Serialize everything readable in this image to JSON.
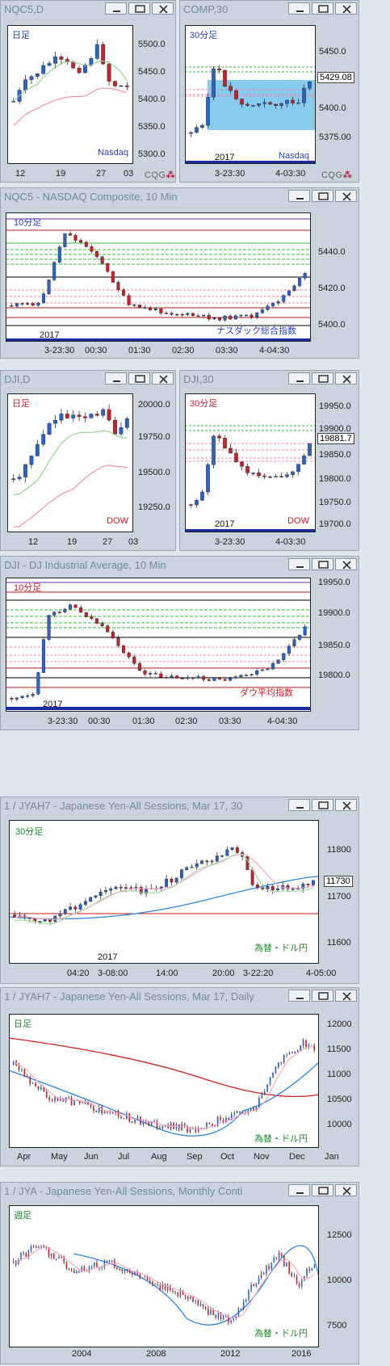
{
  "colors": {
    "up": "#2a64c8",
    "down": "#c8222a",
    "frame_bg": "#c9d4df"
  },
  "windows": [
    {
      "title": "NQC5,D",
      "timeframe": "日足",
      "symbol_label": "Nasdaq",
      "price_axis": [
        "5500.0",
        "5450.0",
        "5400.0",
        "5350.0",
        "5300.0"
      ],
      "time_axis": [
        "12",
        "19",
        "27",
        "03"
      ],
      "year": ""
    },
    {
      "title": "COMP,30",
      "timeframe": "30分足",
      "symbol_label": "Nasdaq",
      "price_axis": [
        "5450.0",
        "5400.0",
        "5375.00"
      ],
      "price_current": "5429.08",
      "time_axis": [
        "3-23:30",
        "4-03:30"
      ],
      "year": "2017"
    },
    {
      "title": "NQC5 - NASDAQ Composite, 10 Min",
      "timeframe": "10分足",
      "symbol_label": "ナスダック総合指数",
      "price_axis": [
        "5440.0",
        "5420.0",
        "5400.0"
      ],
      "time_axis": [
        "3-23:30",
        "00:30",
        "01:30",
        "02:30",
        "03:30",
        "4-04:30"
      ],
      "year": "2017"
    },
    {
      "title": "DJI,D",
      "timeframe": "日足",
      "symbol_label": "DOW",
      "price_axis": [
        "20000.0",
        "19750.0",
        "19500.0",
        "19250.0"
      ],
      "time_axis": [
        "12",
        "19",
        "27",
        "03"
      ],
      "year": ""
    },
    {
      "title": "DJI,30",
      "timeframe": "30分足",
      "symbol_label": "DOW",
      "price_axis": [
        "19950.0",
        "19900.0",
        "19850.0",
        "19800.0",
        "19750.0",
        "19700.0"
      ],
      "price_current": "19881.7",
      "time_axis": [
        "3-23:30",
        "4-03:30"
      ],
      "year": "2017"
    },
    {
      "title": "DJI - DJ Industrial Average, 10 Min",
      "timeframe": "10分足",
      "symbol_label": "ダウ平均指数",
      "price_axis": [
        "19950.0",
        "19900.0",
        "19850.0",
        "19800.0"
      ],
      "time_axis": [
        "3-23:30",
        "00:30",
        "01:30",
        "02:30",
        "03:30",
        "4-04:30"
      ],
      "year": "2017"
    },
    {
      "title": "1 / JYAH7 - Japanese Yen-All Sessions, Mar 17, 30",
      "timeframe": "30分足",
      "symbol_label": "為替・ドル円",
      "price_axis": [
        "11800",
        "11700",
        "11600"
      ],
      "price_current": "11730",
      "time_axis": [
        "04:20",
        "3-08:00",
        "14:00",
        "20:00",
        "3-22:20",
        "4-05:00"
      ],
      "year": "2017"
    },
    {
      "title": "1 / JYAH7 - Japanese Yen-All Sessions, Mar 17, Daily",
      "timeframe": "日足",
      "symbol_label": "為替・ドル円",
      "price_axis": [
        "12000",
        "11500",
        "11000",
        "10500",
        "10000"
      ],
      "time_axis": [
        "Apr",
        "May",
        "Jun",
        "Jul",
        "Aug",
        "Sep",
        "Oct",
        "Nov",
        "Dec",
        "Jan"
      ],
      "year": ""
    },
    {
      "title": "1 / JYA - Japanese Yen-All Sessions, Monthly Conti",
      "timeframe": "週足",
      "symbol_label": "為替・ドル円",
      "price_axis": [
        "12500",
        "10000",
        "7500"
      ],
      "time_axis": [
        "2004",
        "2008",
        "2012",
        "2016"
      ],
      "year": ""
    }
  ],
  "cqg_text": "CQG"
}
